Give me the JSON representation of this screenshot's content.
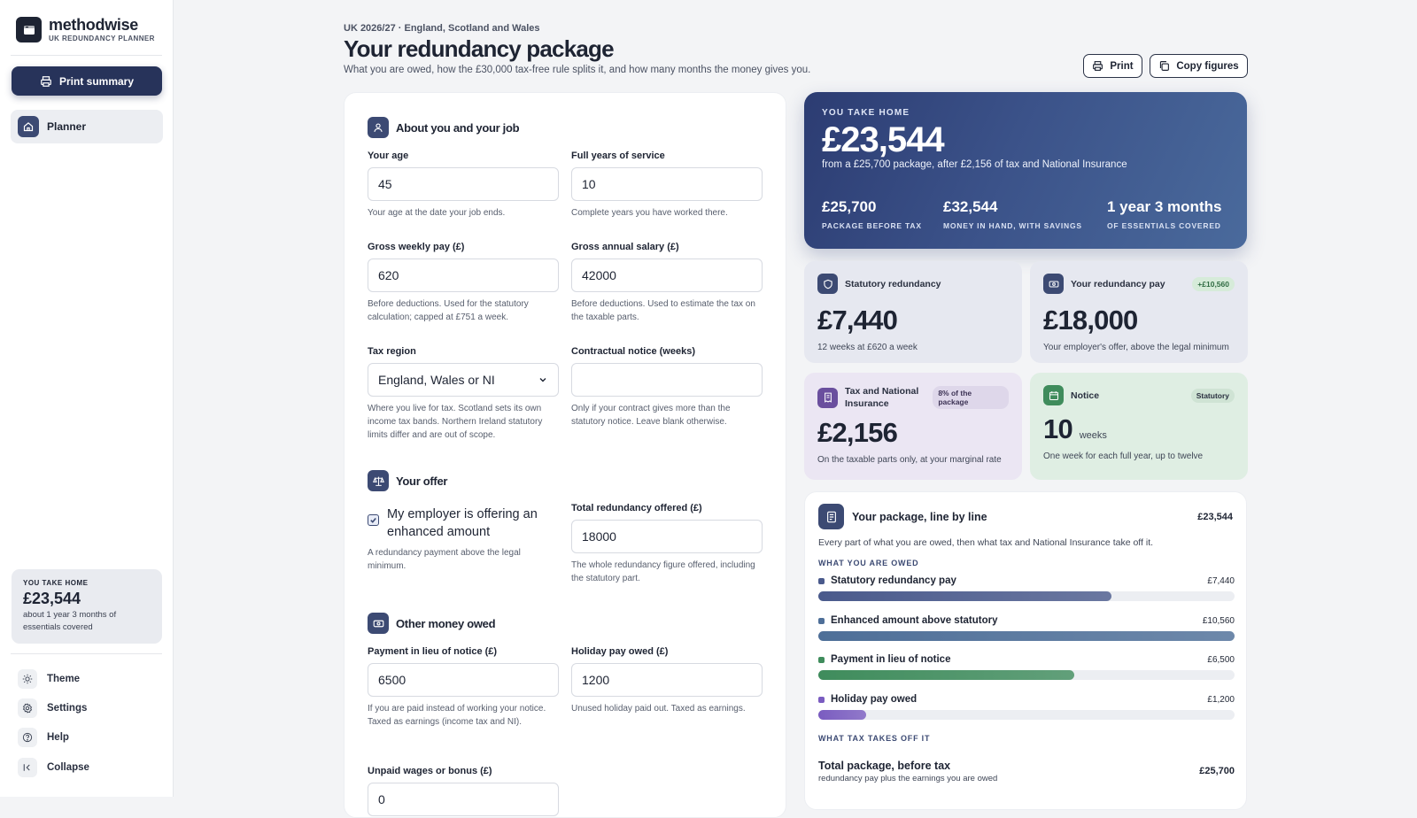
{
  "brand": {
    "name": "methodwise",
    "subtitle": "UK REDUNDANCY PLANNER"
  },
  "sidebar": {
    "print_label": "Print summary",
    "nav_planner": "Planner",
    "takehome": {
      "kicker": "YOU TAKE HOME",
      "value": "£23,544",
      "desc": "about 1 year 3 months of essentials covered"
    },
    "footer": [
      {
        "label": "Theme",
        "icon": "sun-icon"
      },
      {
        "label": "Settings",
        "icon": "gear-icon"
      },
      {
        "label": "Help",
        "icon": "help-icon"
      },
      {
        "label": "Collapse",
        "icon": "collapse-icon"
      }
    ]
  },
  "header": {
    "kicker": "UK 2026/27 · England, Scotland and Wales",
    "title": "Your redundancy package",
    "subtitle": "What you are owed, how the £30,000 tax-free rule splits it, and how many months the money gives you.",
    "print_label": "Print",
    "copy_label": "Copy figures"
  },
  "form": {
    "about": {
      "title": "About you and your job",
      "age": {
        "label": "Your age",
        "value": "45",
        "help": "Your age at the date your job ends."
      },
      "service": {
        "label": "Full years of service",
        "value": "10",
        "help": "Complete years you have worked there."
      },
      "weekly": {
        "label": "Gross weekly pay (£)",
        "value": "620",
        "help": "Before deductions. Used for the statutory calculation; capped at £751 a week."
      },
      "annual": {
        "label": "Gross annual salary (£)",
        "value": "42000",
        "help": "Before deductions. Used to estimate the tax on the taxable parts."
      },
      "region": {
        "label": "Tax region",
        "value": "England, Wales or NI",
        "help": "Where you live for tax. Scotland sets its own income tax bands. Northern Ireland statutory limits differ and are out of scope."
      },
      "notice": {
        "label": "Contractual notice (weeks)",
        "value": "",
        "help": "Only if your contract gives more than the statutory notice. Leave blank otherwise."
      }
    },
    "offer": {
      "title": "Your offer",
      "check_label": "My employer is offering an enhanced amount",
      "check_help": "A redundancy payment above the legal minimum.",
      "total": {
        "label": "Total redundancy offered (£)",
        "value": "18000",
        "help": "The whole redundancy figure offered, including the statutory part."
      }
    },
    "other": {
      "title": "Other money owed",
      "pilon": {
        "label": "Payment in lieu of notice (£)",
        "value": "6500",
        "help": "If you are paid instead of working your notice. Taxed as earnings (income tax and NI)."
      },
      "holiday": {
        "label": "Holiday pay owed (£)",
        "value": "1200",
        "help": "Unused holiday paid out. Taxed as earnings."
      },
      "unpaid": {
        "label": "Unpaid wages or bonus (£)",
        "value": "0"
      }
    }
  },
  "hero": {
    "kicker": "YOU TAKE HOME",
    "value": "£23,544",
    "desc": "from a £25,700 package, after £2,156 of tax and National Insurance",
    "stats": [
      {
        "value": "£25,700",
        "label": "PACKAGE BEFORE TAX"
      },
      {
        "value": "£32,544",
        "label": "MONEY IN HAND, WITH SAVINGS"
      },
      {
        "value": "1 year 3 months",
        "label": "OF ESSENTIALS COVERED"
      }
    ]
  },
  "cards": {
    "statutory": {
      "title": "Statutory redundancy",
      "value": "£7,440",
      "desc": "12 weeks at £620 a week"
    },
    "yourpay": {
      "title": "Your redundancy pay",
      "badge": "+£10,560",
      "value": "£18,000",
      "desc": "Your employer's offer, above the legal minimum"
    },
    "tax": {
      "title": "Tax and National Insurance",
      "badge": "8% of the package",
      "value": "£2,156",
      "desc": "On the taxable parts only, at your marginal rate"
    },
    "notice": {
      "title": "Notice",
      "badge": "Statutory",
      "value": "10",
      "unit": "weeks",
      "desc": "One week for each full year, up to twelve"
    }
  },
  "breakdown": {
    "title": "Your package, line by line",
    "total": "£23,544",
    "desc": "Every part of what you are owed, then what tax and National Insurance take off it.",
    "owed_heading": "WHAT YOU ARE OWED",
    "tax_heading": "WHAT TAX TAKES OFF IT",
    "lines": [
      {
        "label": "Statutory redundancy pay",
        "amount": "£7,440",
        "fraction": 0.705,
        "color": "#4a5a8c"
      },
      {
        "label": "Enhanced amount above statutory",
        "amount": "£10,560",
        "fraction": 1.0,
        "color": "#4e6f98"
      },
      {
        "label": "Payment in lieu of notice",
        "amount": "£6,500",
        "fraction": 0.615,
        "color": "#3f8c5c"
      },
      {
        "label": "Holiday pay owed",
        "amount": "£1,200",
        "fraction": 0.114,
        "color": "#7a5cc0"
      }
    ],
    "total_row": {
      "title": "Total package, before tax",
      "sub": "redundancy pay plus the earnings you are owed",
      "amount": "£25,700"
    }
  }
}
